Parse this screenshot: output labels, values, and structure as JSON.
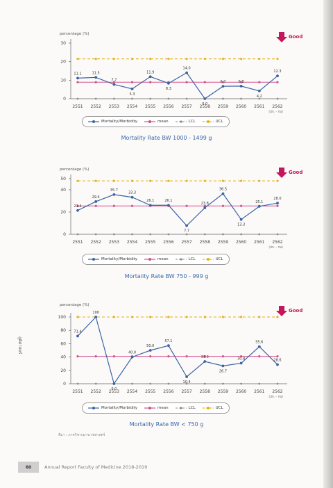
{
  "colors": {
    "mortality": "#3a63a3",
    "mean": "#d2508e",
    "limit": "#e3b21c",
    "good_arrow": "#c2185b",
    "caption": "#3a67a8"
  },
  "legend": {
    "mortality": "Mortality/Morbidity",
    "mean": "mean",
    "lcl": "LCL",
    "ucl": "UCL"
  },
  "side_mark": "สูติศาสตร์",
  "source_note": "ที่มา : ภาควิชากุมารเวชศาสตร์",
  "footer": {
    "page_number": "60",
    "text": "Annual Report Faculty of Medicine 2018-2019"
  },
  "chart_data": [
    {
      "type": "line",
      "caption": "Mortality Rate BW 1000 - 1499 g",
      "ylabel": "percentage (%)",
      "xunit": "(ปก. - กบ)",
      "good_label": "Good",
      "ylim": [
        0,
        30
      ],
      "yticks": [
        0,
        10,
        20,
        30
      ],
      "categories": [
        "2551",
        "2552",
        "2553",
        "2554",
        "2555",
        "2556",
        "2557",
        "2558",
        "2559",
        "2560",
        "2561",
        "2562"
      ],
      "value_labels": [
        "11.1",
        "11.5",
        "7.7",
        "5.3",
        "11.9",
        "8.3",
        "14.0",
        "0.0",
        "6.7",
        "6.8",
        "4.2",
        "12.3"
      ],
      "series": [
        {
          "name": "Mortality/Morbidity",
          "values": [
            11.1,
            11.5,
            7.7,
            5.3,
            11.9,
            8.3,
            14.0,
            0.0,
            6.7,
            6.8,
            4.2,
            12.3
          ]
        },
        {
          "name": "mean",
          "values": [
            8.9,
            8.9,
            8.9,
            8.9,
            8.9,
            8.9,
            8.9,
            8.9,
            8.9,
            8.9,
            8.9,
            8.9
          ]
        },
        {
          "name": "LCL",
          "values": [
            0,
            0,
            0,
            0,
            0,
            0,
            0,
            0,
            0,
            0,
            0,
            0
          ]
        },
        {
          "name": "UCL",
          "values": [
            21.5,
            21.5,
            21.5,
            21.5,
            21.5,
            21.5,
            21.5,
            21.5,
            21.5,
            21.5,
            21.5,
            21.5
          ]
        }
      ]
    },
    {
      "type": "line",
      "caption": "Mortality Rate BW 750 - 999 g",
      "ylabel": "percentage (%)",
      "xunit": "(ปก. - กบ)",
      "good_label": "Good",
      "ylim": [
        0,
        50
      ],
      "yticks": [
        0,
        20,
        40,
        50
      ],
      "categories": [
        "2551",
        "2552",
        "2553",
        "2554",
        "2555",
        "2556",
        "2557",
        "2558",
        "2559",
        "2560",
        "2561",
        "2562"
      ],
      "value_labels": [
        "21.4",
        "29.4",
        "35.7",
        "33.3",
        "26.1",
        "26.1",
        "7.7",
        "23.8",
        "36.5",
        "13.3",
        "25.1",
        "28.0"
      ],
      "series": [
        {
          "name": "Mortality/Morbidity",
          "values": [
            21.4,
            29.4,
            35.7,
            33.3,
            26.1,
            26.1,
            7.7,
            23.8,
            36.5,
            13.3,
            25.1,
            28.0
          ]
        },
        {
          "name": "mean",
          "values": [
            25.5,
            25.5,
            25.5,
            25.5,
            25.5,
            25.5,
            25.5,
            25.5,
            25.5,
            25.5,
            25.5,
            25.5
          ]
        },
        {
          "name": "LCL",
          "values": [
            0,
            0,
            0,
            0,
            0,
            0,
            0,
            0,
            0,
            0,
            0,
            0
          ]
        },
        {
          "name": "UCL",
          "values": [
            48,
            48,
            48,
            48,
            48,
            48,
            48,
            48,
            48,
            48,
            48,
            48
          ]
        }
      ]
    },
    {
      "type": "line",
      "caption": "Mortality Rate BW < 750 g",
      "ylabel": "percentage (%)",
      "xunit": "(ปก. - กบ)",
      "good_label": "Good",
      "ylim": [
        0,
        100
      ],
      "yticks": [
        0,
        20,
        40,
        60,
        80,
        100
      ],
      "categories": [
        "2551",
        "2552",
        "2553",
        "2554",
        "2555",
        "2556",
        "2557",
        "2558",
        "2559",
        "2560",
        "2561",
        "2562"
      ],
      "value_labels": [
        "71.4",
        "100",
        "0.0",
        "40.0",
        "50.0",
        "57.1",
        "10.4",
        "33.3",
        "26.7",
        "30.8",
        "55.6",
        "28.6"
      ],
      "series": [
        {
          "name": "Mortality/Morbidity",
          "values": [
            71.4,
            100,
            0.0,
            40.0,
            50.0,
            57.1,
            10.4,
            33.3,
            26.7,
            30.8,
            55.6,
            28.6
          ]
        },
        {
          "name": "mean",
          "values": [
            41,
            41,
            41,
            41,
            41,
            41,
            41,
            41,
            41,
            41,
            41,
            41
          ]
        },
        {
          "name": "LCL",
          "values": [
            0,
            0,
            0,
            0,
            0,
            0,
            0,
            0,
            0,
            0,
            0,
            0
          ]
        },
        {
          "name": "UCL",
          "values": [
            100,
            100,
            100,
            100,
            100,
            100,
            100,
            100,
            100,
            100,
            100,
            100
          ]
        }
      ]
    }
  ]
}
